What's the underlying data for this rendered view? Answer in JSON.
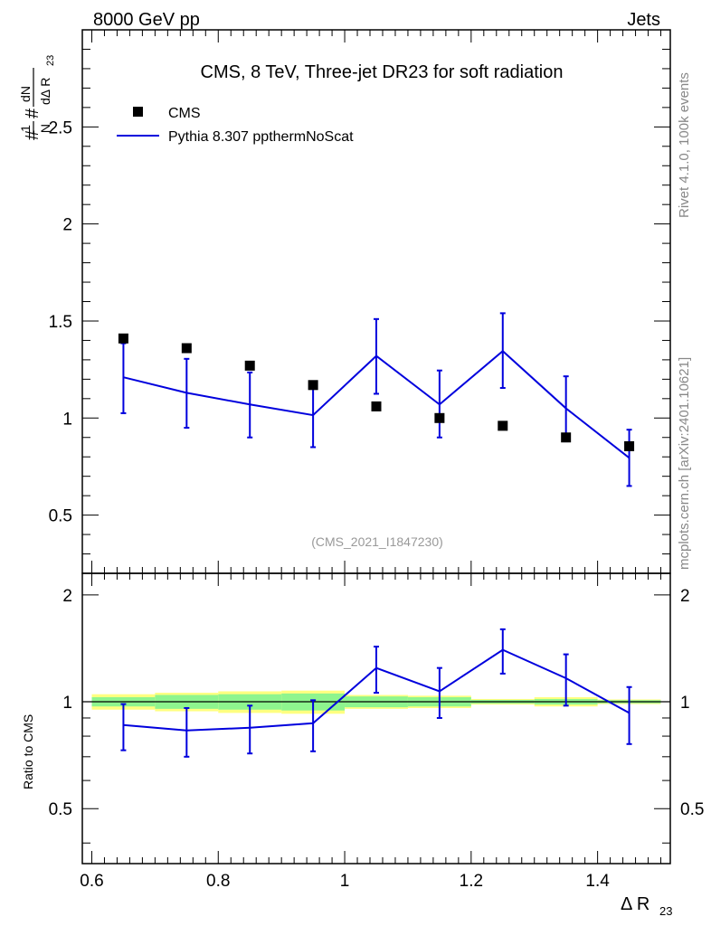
{
  "header": {
    "left": "8000 GeV pp",
    "right": "Jets",
    "title": "CMS, 8 TeV, Three-jet DR23 for soft radiation",
    "analysis_id": "(CMS_2021_I1847230)"
  },
  "side_text": {
    "rivet": "Rivet 4.1.0,  100k events",
    "mcplots": "mcplots.cern.ch [arXiv:2401.10621]"
  },
  "legend": {
    "data_label": "CMS",
    "mc_label": "Pythia 8.307 ppthermNoScat"
  },
  "axes": {
    "ylabel_top_frac1_num": "1",
    "ylabel_top_frac1_den": "N",
    "ylabel_top_frac2_num": "dN",
    "ylabel_top_frac2_den": "dΔ R",
    "ylabel_top_sub": "23",
    "ylabel_ratio": "Ratio to CMS",
    "xlabel_main": "Δ R",
    "xlabel_sub": "23"
  },
  "colors": {
    "data": "#000000",
    "mc": "#0000dd",
    "band_inner": "#8ef58e",
    "band_outer": "#ffff80"
  },
  "chart_data": [
    {
      "type": "scatter",
      "title": "CMS, 8 TeV, Three-jet DR23 for soft radiation",
      "xlabel": "Δ R23",
      "ylabel": "1/N dN/dΔ R23",
      "xlim": [
        0.585,
        1.515
      ],
      "ylim": [
        0.2,
        3.0
      ],
      "yticks": [
        0.5,
        1,
        1.5,
        2,
        2.5
      ],
      "ytick_labels": [
        "0.5",
        "1",
        "1.5",
        "2",
        "2.5"
      ],
      "x": [
        0.65,
        0.75,
        0.85,
        0.95,
        1.05,
        1.15,
        1.25,
        1.35,
        1.45
      ],
      "series": [
        {
          "name": "CMS",
          "style": "markers",
          "values": [
            1.41,
            1.36,
            1.27,
            1.17,
            1.06,
            1.0,
            0.96,
            0.9,
            0.855
          ]
        },
        {
          "name": "Pythia 8.307 ppthermNoScat",
          "style": "line",
          "values": [
            1.21,
            1.13,
            1.07,
            1.015,
            1.32,
            1.07,
            1.345,
            1.05,
            0.795
          ],
          "err_low": [
            1.025,
            0.95,
            0.9,
            0.85,
            1.125,
            0.9,
            1.155,
            0.88,
            0.65
          ],
          "err_high": [
            1.385,
            1.305,
            1.235,
            1.165,
            1.51,
            1.245,
            1.54,
            1.215,
            0.94
          ]
        }
      ]
    },
    {
      "type": "line",
      "title": "Ratio to CMS",
      "xlabel": "Δ R23",
      "ylabel": "Ratio to CMS",
      "xlim": [
        0.585,
        1.515
      ],
      "ylim": [
        0.35,
        2.3
      ],
      "yscale": "log",
      "yticks": [
        0.5,
        1,
        2
      ],
      "ytick_labels": [
        "0.5",
        "1",
        "2"
      ],
      "xticks": [
        0.6,
        0.8,
        1.0,
        1.2,
        1.4
      ],
      "xtick_labels": [
        "0.6",
        "0.8",
        "1",
        "1.2",
        "1.4"
      ],
      "bin_edges": [
        0.6,
        0.7,
        0.8,
        0.9,
        1.0,
        1.1,
        1.2,
        1.3,
        1.4,
        1.5
      ],
      "x": [
        0.65,
        0.75,
        0.85,
        0.95,
        1.05,
        1.15,
        1.25,
        1.35,
        1.45
      ],
      "band_inner_halfwidth": [
        0.03,
        0.045,
        0.05,
        0.055,
        0.035,
        0.03,
        0.012,
        0.018,
        0.01
      ],
      "band_outer_halfwidth": [
        0.05,
        0.06,
        0.07,
        0.075,
        0.045,
        0.04,
        0.018,
        0.03,
        0.015
      ],
      "series": [
        {
          "name": "Pythia 8.307 ppthermNoScat",
          "values": [
            0.86,
            0.83,
            0.845,
            0.87,
            1.245,
            1.07,
            1.4,
            1.165,
            0.93
          ],
          "err_low": [
            0.73,
            0.7,
            0.715,
            0.725,
            1.06,
            0.9,
            1.2,
            0.975,
            0.76
          ],
          "err_high": [
            0.985,
            0.96,
            0.975,
            1.01,
            1.43,
            1.245,
            1.6,
            1.36,
            1.1
          ]
        }
      ]
    }
  ]
}
